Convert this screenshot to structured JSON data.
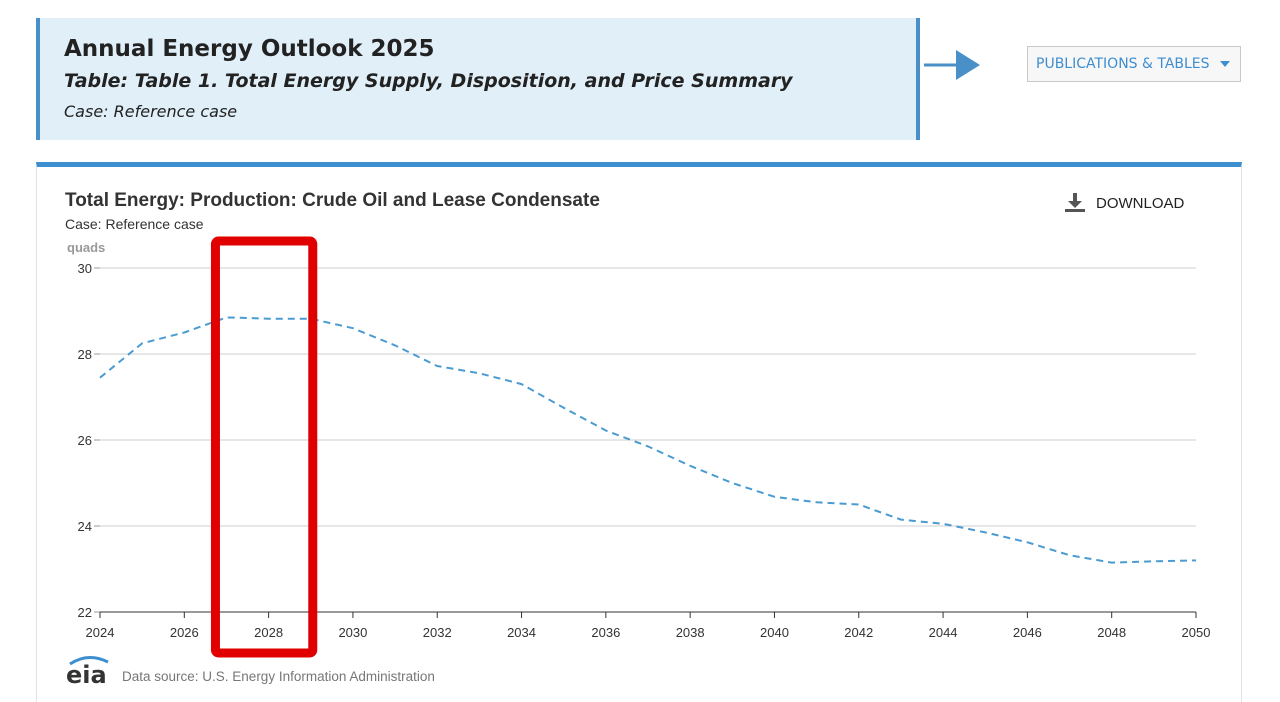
{
  "header": {
    "title": "Annual Energy Outlook 2025",
    "table": "Table: Table 1. Total Energy Supply, Disposition, and Price Summary",
    "case": "Case: Reference case"
  },
  "publications_button": {
    "label": "PUBLICATIONS & TABLES"
  },
  "download": {
    "label": "DOWNLOAD"
  },
  "colors": {
    "accent": "#3e8fcf",
    "header_bg": "#e1eff8",
    "series": "#4a9bd2",
    "highlight": "#e00000"
  },
  "chart_data": {
    "type": "line",
    "title": "Total Energy: Production: Crude Oil and Lease Condensate",
    "subtitle": "Case: Reference case",
    "ylabel": "quads",
    "xlabel": "",
    "ylim": [
      22,
      30
    ],
    "xlim": [
      2024,
      2050
    ],
    "yticks": [
      "30",
      "28",
      "26",
      "24",
      "22"
    ],
    "xticks": [
      "2024",
      "2026",
      "2028",
      "2030",
      "2032",
      "2034",
      "2036",
      "2038",
      "2040",
      "2042",
      "2044",
      "2046",
      "2048",
      "2050"
    ],
    "grid": true,
    "line_style": "dashed",
    "x": [
      2024,
      2025,
      2026,
      2027,
      2028,
      2029,
      2030,
      2031,
      2032,
      2033,
      2034,
      2035,
      2036,
      2037,
      2038,
      2039,
      2040,
      2041,
      2042,
      2043,
      2044,
      2045,
      2046,
      2047,
      2048,
      2049,
      2050
    ],
    "values": [
      27.45,
      28.25,
      28.5,
      28.85,
      28.82,
      28.82,
      28.6,
      28.2,
      27.72,
      27.55,
      27.3,
      26.75,
      26.22,
      25.85,
      25.4,
      25.0,
      24.68,
      24.55,
      24.5,
      24.15,
      24.05,
      23.85,
      23.62,
      23.32,
      23.15,
      23.18,
      23.2
    ],
    "highlight": {
      "x_range": [
        2027,
        2029
      ],
      "color": "#e00000"
    }
  },
  "footer": {
    "logo_text": "eia",
    "source": "Data source: U.S. Energy Information Administration"
  }
}
